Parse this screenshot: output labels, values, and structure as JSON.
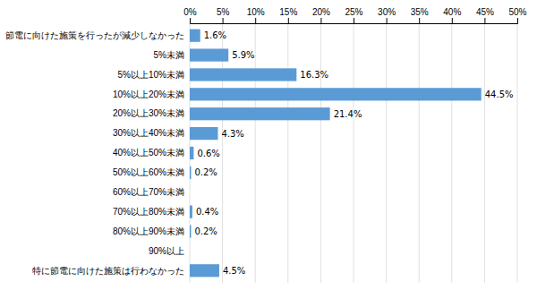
{
  "chart_data": {
    "type": "bar",
    "orientation": "horizontal",
    "categories": [
      "節電に向けた施策を行ったが減少しなかった",
      "5%未満",
      "5%以上10%未満",
      "10%以上20%未満",
      "20%以上30%未満",
      "30%以上40%未満",
      "40%以上50%未満",
      "50%以上60%未満",
      "60%以上70%未満",
      "70%以上80%未満",
      "80%以上90%未満",
      "90%以上",
      "特に節電に向けた施策は行わなかった"
    ],
    "values": [
      1.6,
      5.9,
      16.3,
      44.5,
      21.4,
      4.3,
      0.6,
      0.2,
      0.0,
      0.4,
      0.2,
      0.0,
      4.5
    ],
    "value_labels": [
      "1.6%",
      "5.9%",
      "16.3%",
      "44.5%",
      "21.4%",
      "4.3%",
      "0.6%",
      "0.2%",
      null,
      "0.4%",
      "0.2%",
      null,
      "4.5%"
    ],
    "data_labels": true,
    "color": "#5b9bd5",
    "xlim": [
      0,
      50
    ],
    "xticks": [
      {
        "value": 0,
        "label": "0%"
      },
      {
        "value": 5,
        "label": "5%"
      },
      {
        "value": 10,
        "label": "10%"
      },
      {
        "value": 15,
        "label": "15%"
      },
      {
        "value": 20,
        "label": "20%"
      },
      {
        "value": 25,
        "label": "25%"
      },
      {
        "value": 30,
        "label": "30%"
      },
      {
        "value": 35,
        "label": "35%"
      },
      {
        "value": 40,
        "label": "40%"
      },
      {
        "value": 45,
        "label": "45%"
      },
      {
        "value": 50,
        "label": "50%"
      }
    ],
    "grid": true
  }
}
